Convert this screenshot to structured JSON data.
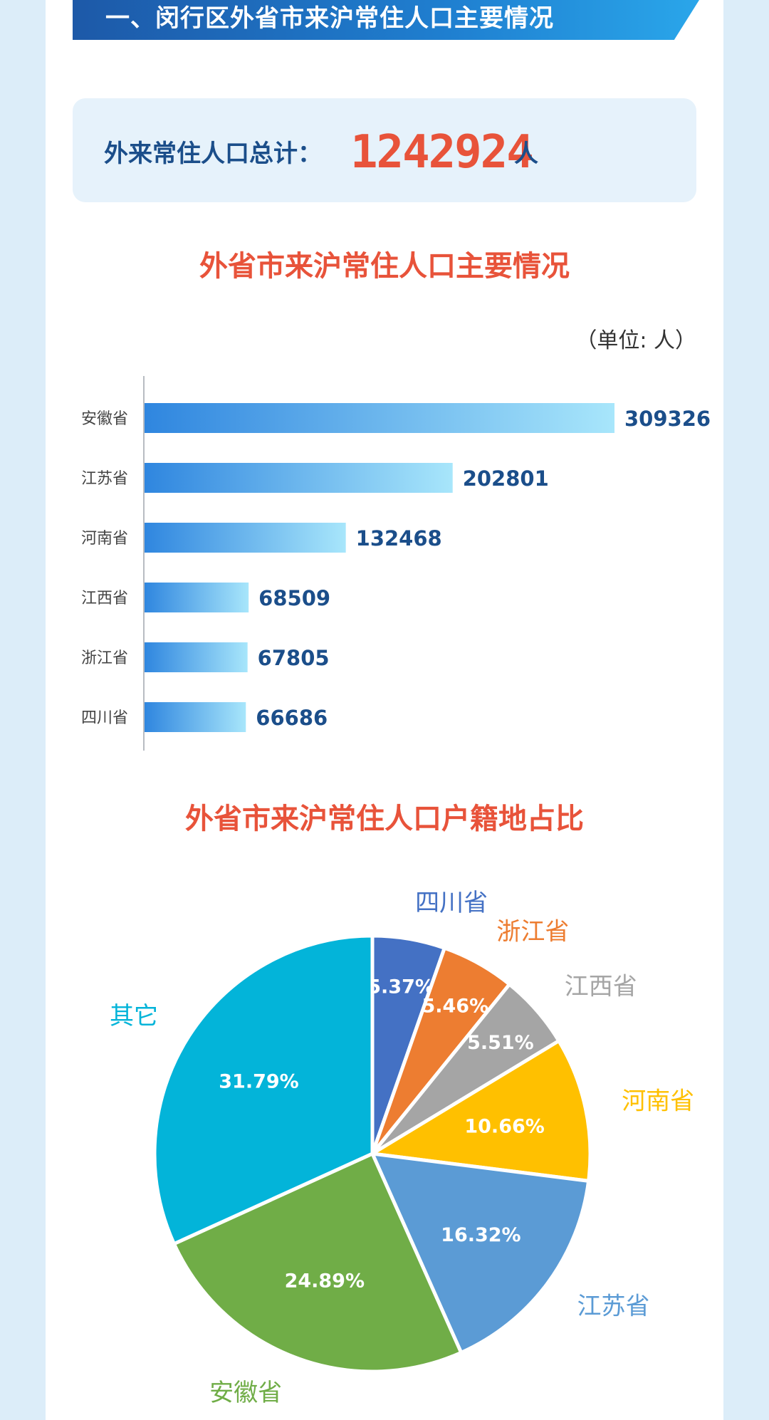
{
  "banner": {
    "title": "一、闵行区外省市来沪常住人口主要情况"
  },
  "summary": {
    "label": "外来常住人口总计：",
    "value": "1242924",
    "unit": "人"
  },
  "colors": {
    "accent_red": "#e8533a",
    "navy": "#1b4e8a",
    "bar_gradient_start": "#2f86df",
    "bar_gradient_end": "#a8e6fb"
  },
  "chart_data": [
    {
      "type": "bar",
      "orientation": "horizontal",
      "title": "外省市来沪常住人口主要情况",
      "unit_note": "（单位: 人）",
      "categories": [
        "安徽省",
        "江苏省",
        "河南省",
        "江西省",
        "浙江省",
        "四川省"
      ],
      "values": [
        309326,
        202801,
        132468,
        68509,
        67805,
        66686
      ],
      "data_labels": [
        "309326",
        "202801",
        "132468",
        "68509",
        "67805",
        "66686"
      ],
      "xlim": [
        0,
        309326
      ]
    },
    {
      "type": "pie",
      "title": "外省市来沪常住人口户籍地占比",
      "slices": [
        {
          "label": "四川省",
          "value": 5.37,
          "pct_label": "5.37%",
          "color": "#4471c4"
        },
        {
          "label": "浙江省",
          "value": 5.46,
          "pct_label": "5.46%",
          "color": "#ed7d31"
        },
        {
          "label": "江西省",
          "value": 5.51,
          "pct_label": "5.51%",
          "color": "#a5a5a5"
        },
        {
          "label": "河南省",
          "value": 10.66,
          "pct_label": "10.66%",
          "color": "#ffc000"
        },
        {
          "label": "江苏省",
          "value": 16.32,
          "pct_label": "16.32%",
          "color": "#5b9bd5"
        },
        {
          "label": "安徽省",
          "value": 24.89,
          "pct_label": "24.89%",
          "color": "#70ad47"
        },
        {
          "label": "其它",
          "value": 31.79,
          "pct_label": "31.79%",
          "color": "#03b4d9"
        }
      ],
      "start_angle_deg": 0,
      "direction": "clockwise"
    }
  ]
}
